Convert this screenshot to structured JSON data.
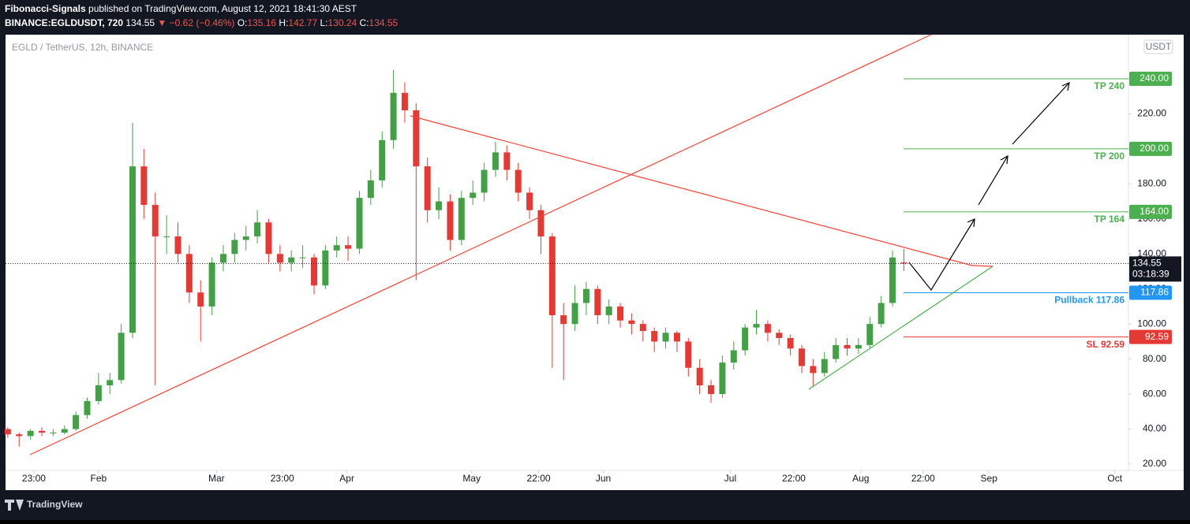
{
  "header": {
    "author": "Fibonacci-Signals",
    "published": "published on TradingView.com, August 12, 2021 18:41:30 AEST",
    "symbol": "BINANCE:EGLDUSDT, 720",
    "change": "▼ −0.62 (−0.46%)",
    "o_label": "O:",
    "h_label": "H:",
    "l_label": "L:",
    "c_label": "C:"
  },
  "chart_data": {
    "type": "candlestick",
    "legend": "EGLD / TetherUS, 12h, BINANCE",
    "currency": "USDT",
    "up_color": "#43a047",
    "down_color": "#e53935",
    "open": [
      40,
      37,
      36,
      39,
      38,
      38,
      40,
      48,
      56,
      65,
      68,
      95,
      190,
      168,
      150,
      150,
      140,
      118,
      110,
      135,
      140,
      148,
      150,
      158,
      140,
      135,
      138,
      138,
      122,
      142,
      145,
      143,
      172,
      182,
      205,
      232,
      222,
      190,
      165,
      170,
      148,
      172,
      175,
      188,
      198,
      188,
      175,
      165,
      150,
      105,
      100,
      112,
      120,
      105,
      110,
      102,
      100,
      96,
      90,
      95,
      90,
      75,
      65,
      60,
      78,
      85,
      98,
      100,
      95,
      92,
      86,
      76,
      72,
      80,
      88,
      86,
      88,
      100,
      112,
      135.16
    ],
    "high": [
      41,
      38,
      40,
      41,
      40,
      42,
      50,
      58,
      72,
      72,
      100,
      215,
      200,
      175,
      162,
      158,
      145,
      125,
      138,
      145,
      152,
      156,
      165,
      160,
      145,
      142,
      145,
      140,
      145,
      150,
      150,
      176,
      188,
      210,
      245,
      238,
      226,
      195,
      178,
      174,
      176,
      182,
      192,
      204,
      202,
      192,
      178,
      168,
      152,
      112,
      122,
      124,
      122,
      114,
      112,
      106,
      102,
      98,
      98,
      96,
      92,
      80,
      68,
      82,
      90,
      100,
      108,
      102,
      97,
      94,
      88,
      80,
      84,
      92,
      92,
      92,
      104,
      116,
      142,
      142.77
    ],
    "low": [
      35,
      30,
      34,
      36,
      36,
      37,
      39,
      46,
      54,
      60,
      66,
      92,
      160,
      65,
      140,
      135,
      112,
      90,
      105,
      130,
      135,
      142,
      146,
      135,
      130,
      130,
      132,
      117,
      120,
      138,
      136,
      140,
      168,
      178,
      200,
      215,
      125,
      158,
      160,
      142,
      145,
      168,
      170,
      184,
      182,
      170,
      160,
      140,
      75,
      68,
      96,
      105,
      100,
      100,
      98,
      94,
      90,
      84,
      86,
      84,
      70,
      60,
      55,
      58,
      74,
      82,
      94,
      90,
      88,
      82,
      72,
      64,
      70,
      78,
      82,
      83,
      86,
      98,
      110,
      130.24
    ],
    "close": [
      37,
      36,
      39,
      38,
      38,
      40,
      48,
      56,
      65,
      68,
      95,
      190,
      168,
      150,
      150,
      140,
      118,
      110,
      135,
      140,
      148,
      150,
      158,
      140,
      135,
      138,
      138,
      122,
      142,
      145,
      143,
      172,
      182,
      205,
      232,
      222,
      190,
      165,
      170,
      148,
      172,
      175,
      188,
      198,
      188,
      175,
      165,
      150,
      105,
      100,
      112,
      120,
      105,
      110,
      102,
      100,
      96,
      90,
      95,
      90,
      75,
      65,
      60,
      78,
      85,
      98,
      100,
      95,
      92,
      86,
      76,
      72,
      80,
      88,
      86,
      88,
      100,
      112,
      138,
      134.55
    ],
    "countdown": "03:18:39",
    "xlim": [
      -0.2,
      98.8
    ],
    "xticks": [
      {
        "value": 2.3,
        "label": "23:00"
      },
      {
        "value": 8.0,
        "label": "Feb"
      },
      {
        "value": 18.4,
        "label": "Mar"
      },
      {
        "value": 24.2,
        "label": "23:00"
      },
      {
        "value": 29.9,
        "label": "Apr"
      },
      {
        "value": 40.9,
        "label": "May"
      },
      {
        "value": 46.8,
        "label": "22:00"
      },
      {
        "value": 52.5,
        "label": "Jun"
      },
      {
        "value": 63.7,
        "label": "Jul"
      },
      {
        "value": 69.3,
        "label": "22:00"
      },
      {
        "value": 75.2,
        "label": "Aug"
      },
      {
        "value": 80.7,
        "label": "22:00"
      },
      {
        "value": 86.5,
        "label": "Sep"
      },
      {
        "value": 97.6,
        "label": "Oct"
      }
    ],
    "ylim": [
      16.4,
      265.2
    ],
    "yticks": [
      {
        "value": 20,
        "label": "20.00"
      },
      {
        "value": 40,
        "label": "40.00"
      },
      {
        "value": 60,
        "label": "60.00"
      },
      {
        "value": 80,
        "label": "80.00"
      },
      {
        "value": 100,
        "label": "100.00"
      },
      {
        "value": 120,
        "label": "120.00"
      },
      {
        "value": 140,
        "label": "140.00"
      },
      {
        "value": 160,
        "label": "160.00"
      },
      {
        "value": 180,
        "label": "180.00"
      },
      {
        "value": 200,
        "label": "200.00"
      },
      {
        "value": 220,
        "label": "220.00"
      },
      {
        "value": 240,
        "label": "240.00"
      }
    ],
    "levels": {
      "names": [
        "TP 240",
        "TP 200",
        "TP 164",
        "Pullback 117.86",
        "SL 92.59"
      ],
      "values": [
        240,
        200,
        164,
        117.86,
        92.59
      ],
      "value_labels": [
        "240.00",
        "200.00",
        "164.00",
        "117.86",
        "92.59"
      ],
      "colors": [
        "#4caf50",
        "#4caf50",
        "#4caf50",
        "#2196f3",
        "#e53935"
      ]
    }
  },
  "footer": {
    "brand": "TradingView"
  }
}
